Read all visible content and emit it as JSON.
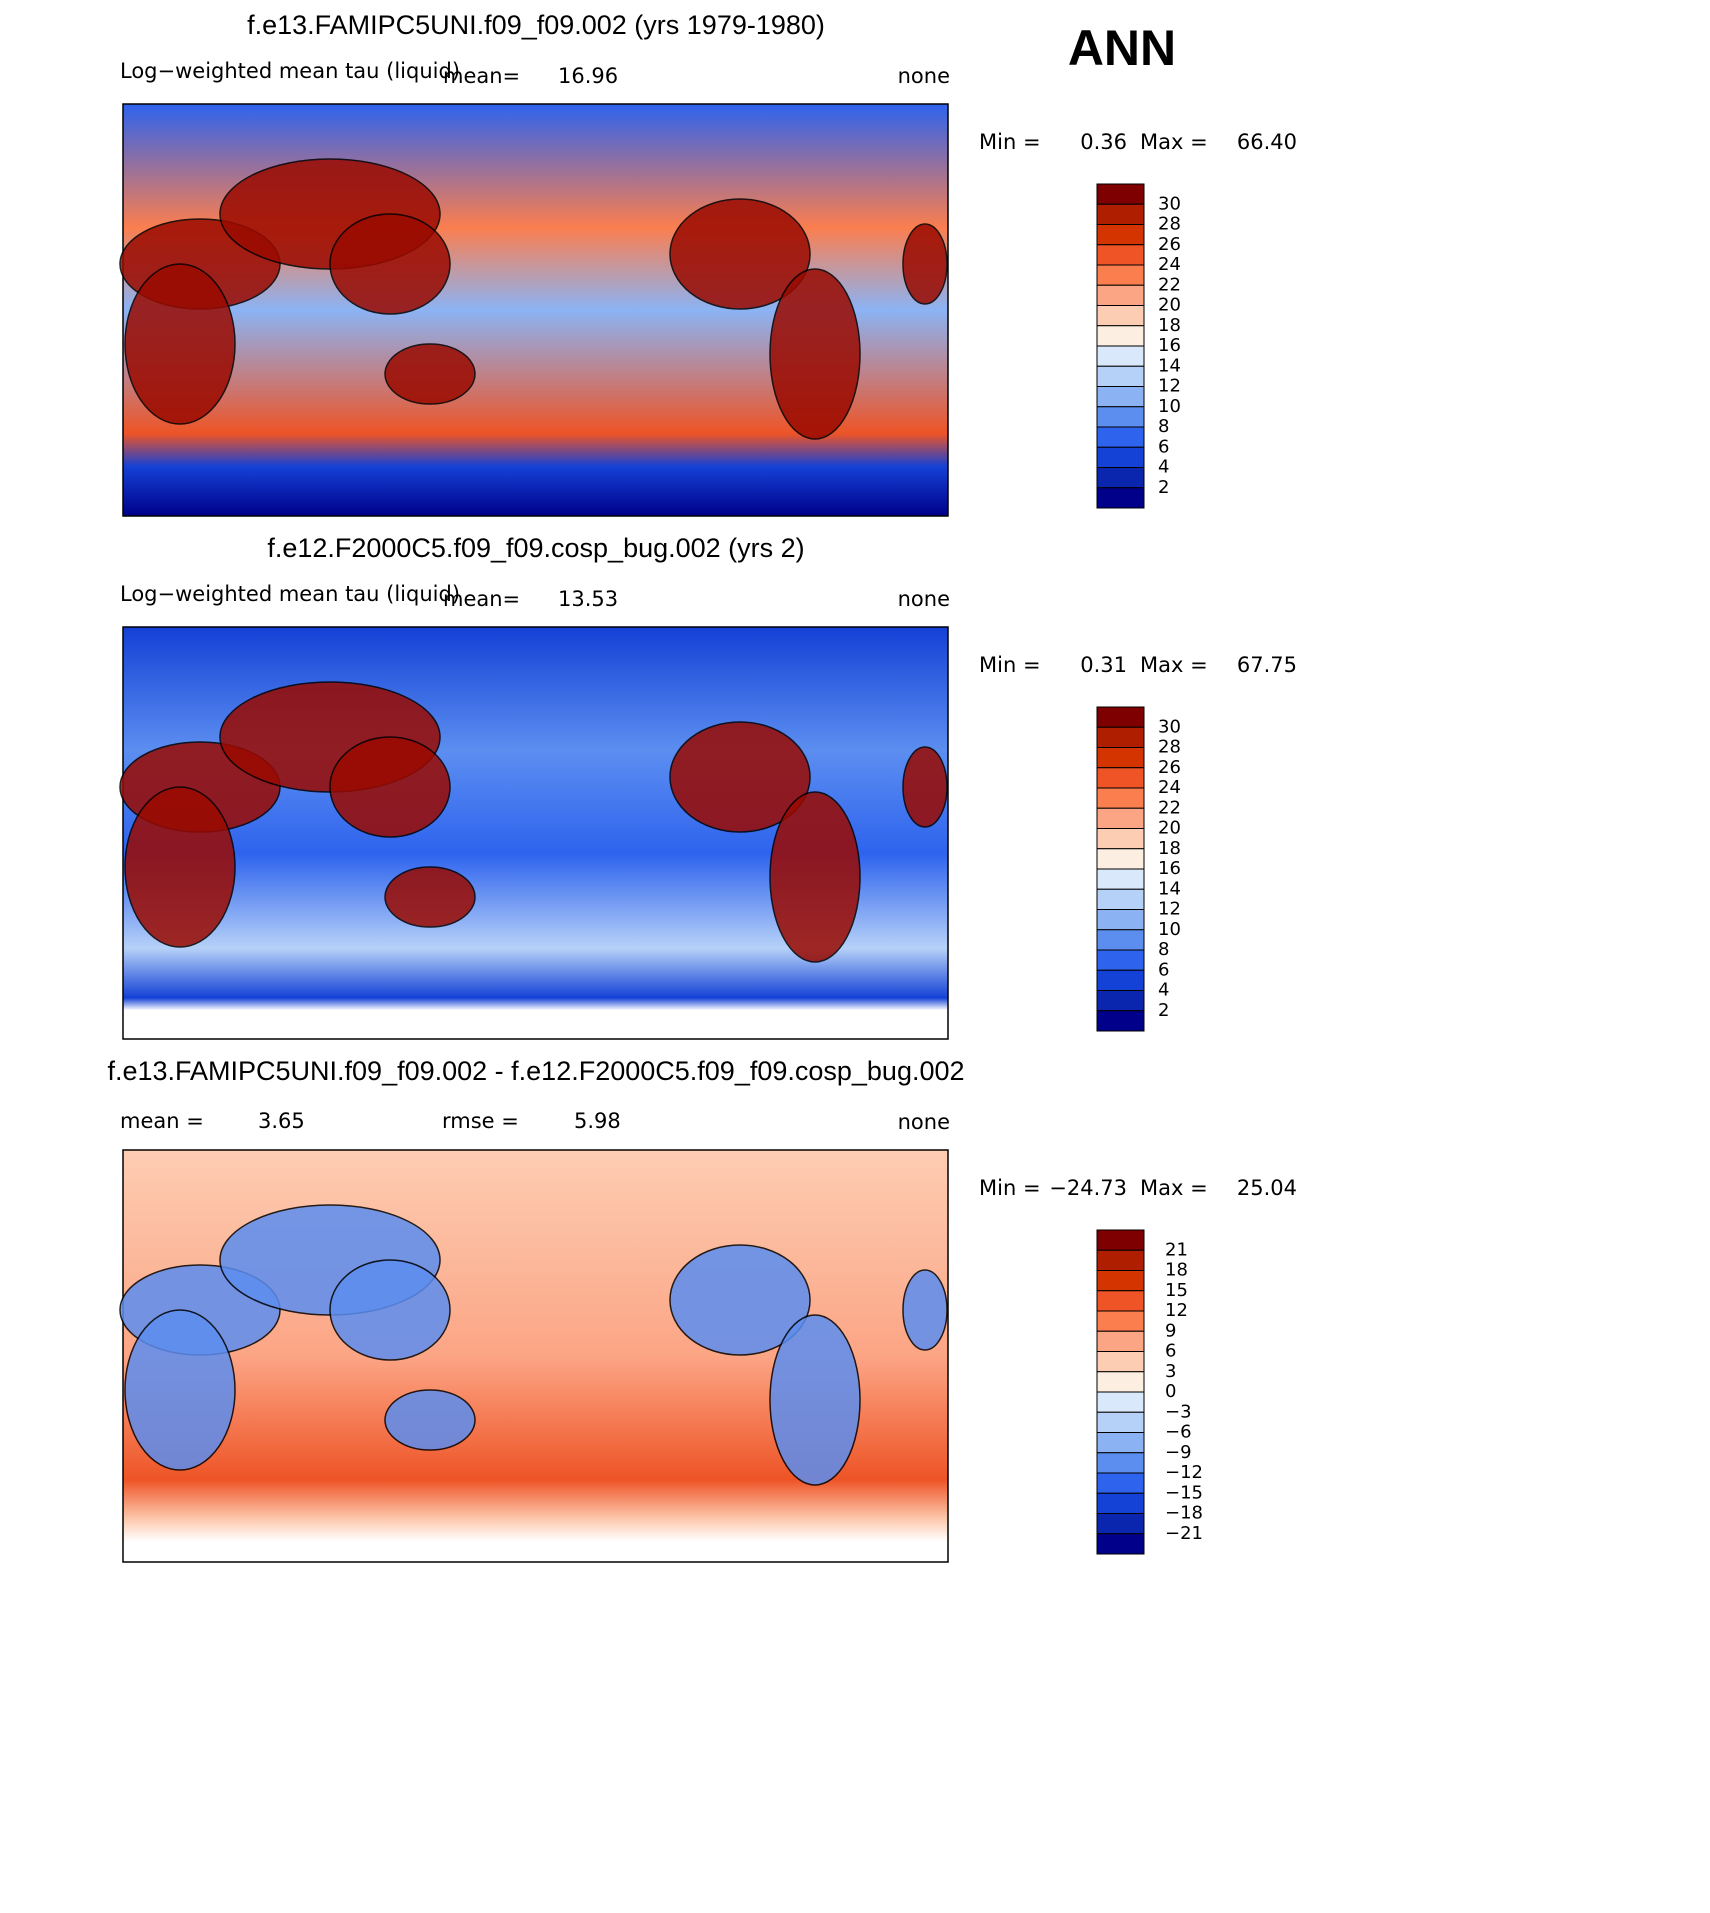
{
  "header": {
    "season": "ANN"
  },
  "panels": [
    {
      "title": "f.e13.FAMIPC5UNI.f09_f09.002 (yrs 1979-1980)",
      "left_label": "Log−weighted mean tau (liquid)",
      "mean_label": "mean=",
      "mean": "16.96",
      "right_label": "none",
      "min_label": "Min =",
      "min": "0.36",
      "max_label": "Max =",
      "max": "66.40",
      "colorbar_labels": [
        "30",
        "28",
        "26",
        "24",
        "22",
        "20",
        "18",
        "16",
        "14",
        "12",
        "10",
        "8",
        "6",
        "4",
        "2"
      ],
      "colorbar_colors": [
        "#7f0000",
        "#b01e00",
        "#d33400",
        "#ee5426",
        "#fb7e4f",
        "#fca585",
        "#fdcdb3",
        "#fdeee2",
        "#d9e8fb",
        "#b6d1f8",
        "#8bb3f4",
        "#5c8ef0",
        "#2e63ee",
        "#1441d6",
        "#0a25ae",
        "#00008a"
      ]
    },
    {
      "title": "f.e12.F2000C5.f09_f09.cosp_bug.002 (yrs 2)",
      "left_label": "Log−weighted mean tau (liquid)",
      "mean_label": "mean=",
      "mean": "13.53",
      "right_label": "none",
      "min_label": "Min =",
      "min": "0.31",
      "max_label": "Max =",
      "max": "67.75",
      "colorbar_labels": [
        "30",
        "28",
        "26",
        "24",
        "22",
        "20",
        "18",
        "16",
        "14",
        "12",
        "10",
        "8",
        "6",
        "4",
        "2"
      ],
      "colorbar_colors": [
        "#7f0000",
        "#b01e00",
        "#d33400",
        "#ee5426",
        "#fb7e4f",
        "#fca585",
        "#fdcdb3",
        "#fdeee2",
        "#d9e8fb",
        "#b6d1f8",
        "#8bb3f4",
        "#5c8ef0",
        "#2e63ee",
        "#1441d6",
        "#0a25ae",
        "#00008a"
      ]
    },
    {
      "title": "f.e13.FAMIPC5UNI.f09_f09.002 - f.e12.F2000C5.f09_f09.cosp_bug.002",
      "left_label": "mean =",
      "mean_label": "rmse =",
      "left_value": "3.65",
      "mean": "5.98",
      "right_label": "none",
      "min_label": "Min =",
      "min": "−24.73",
      "max_label": "Max =",
      "max": "25.04",
      "colorbar_labels": [
        "21",
        "18",
        "15",
        "12",
        "9",
        "6",
        "3",
        "0",
        "−3",
        "−6",
        "−9",
        "−12",
        "−15",
        "−18",
        "−21"
      ],
      "colorbar_colors": [
        "#7f0000",
        "#b01e00",
        "#d33400",
        "#ee5426",
        "#fb7e4f",
        "#fca585",
        "#fdcdb3",
        "#fdeee2",
        "#d9e8fb",
        "#b6d1f8",
        "#8bb3f4",
        "#5c8ef0",
        "#2e63ee",
        "#1441d6",
        "#0a25ae",
        "#00008a"
      ]
    }
  ]
}
